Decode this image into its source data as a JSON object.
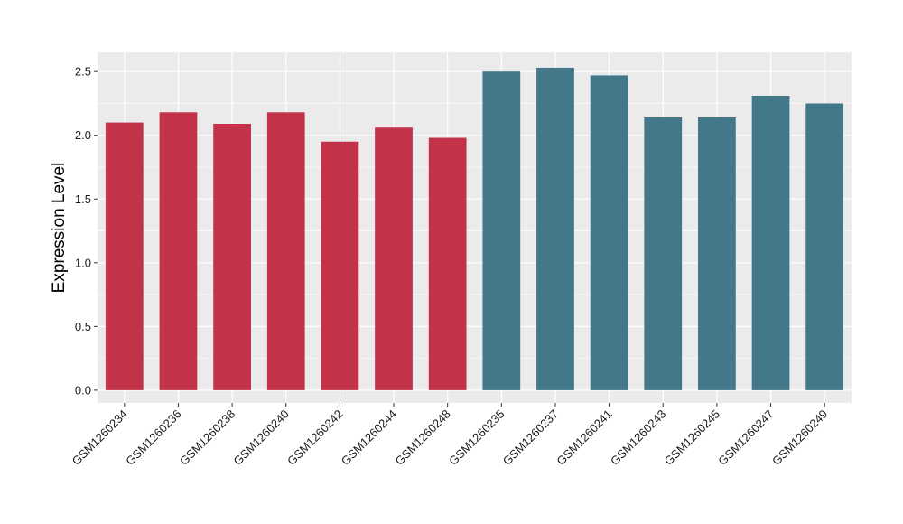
{
  "chart_data": {
    "type": "bar",
    "title": "",
    "xlabel": "",
    "ylabel": "Expression Level",
    "ylim": [
      -0.1,
      2.65
    ],
    "yticks": [
      0.0,
      0.5,
      1.0,
      1.5,
      2.0,
      2.5
    ],
    "ytick_labels": [
      "0.0",
      "0.5",
      "1.0",
      "1.5",
      "2.0",
      "2.5"
    ],
    "grid": true,
    "legend": "none",
    "categories": [
      "GSM1260234",
      "GSM1260236",
      "GSM1260238",
      "GSM1260240",
      "GSM1260242",
      "GSM1260244",
      "GSM1260248",
      "GSM1260235",
      "GSM1260237",
      "GSM1260241",
      "GSM1260243",
      "GSM1260245",
      "GSM1260247",
      "GSM1260249"
    ],
    "values": [
      2.1,
      2.18,
      2.09,
      2.18,
      1.95,
      2.06,
      1.98,
      2.5,
      2.53,
      2.47,
      2.14,
      2.14,
      2.31,
      2.25
    ],
    "bar_colors": [
      "#c23248",
      "#c23248",
      "#c23248",
      "#c23248",
      "#c23248",
      "#c23248",
      "#c23248",
      "#42788a",
      "#42788a",
      "#42788a",
      "#42788a",
      "#42788a",
      "#42788a",
      "#42788a"
    ],
    "panel_background": "#ebebeb",
    "gridline_color": "#ffffff"
  }
}
